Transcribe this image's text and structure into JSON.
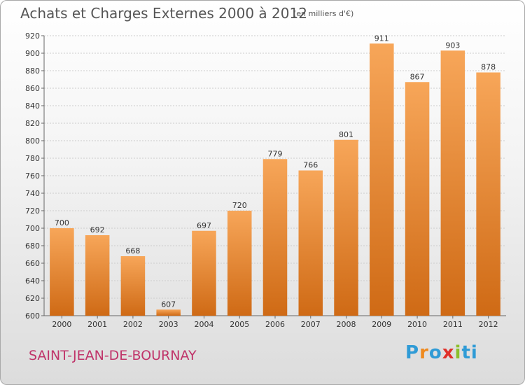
{
  "title": "Achats et Charges Externes 2000 à 2012",
  "unit_note": "(en milliers d'€)",
  "commune": "SAINT-JEAN-DE-BOURNAY",
  "brand": [
    "P",
    "r",
    "o",
    "x",
    "i",
    "ti"
  ],
  "colors": {
    "bar_light": "#f7a659",
    "bar_dark": "#cf6a15",
    "grid": "#cccccc",
    "commune": "#c0346a"
  },
  "chart_data": {
    "type": "bar",
    "categories": [
      "2000",
      "2001",
      "2002",
      "2003",
      "2004",
      "2005",
      "2006",
      "2007",
      "2008",
      "2009",
      "2010",
      "2011",
      "2012"
    ],
    "values": [
      700,
      692,
      668,
      607,
      697,
      720,
      779,
      766,
      801,
      911,
      867,
      903,
      878
    ],
    "ylim": [
      600,
      920
    ],
    "yticks": [
      600,
      620,
      640,
      660,
      680,
      700,
      720,
      740,
      760,
      780,
      800,
      820,
      840,
      860,
      880,
      900,
      920
    ],
    "grid": true,
    "xlabel": "",
    "ylabel": ""
  }
}
